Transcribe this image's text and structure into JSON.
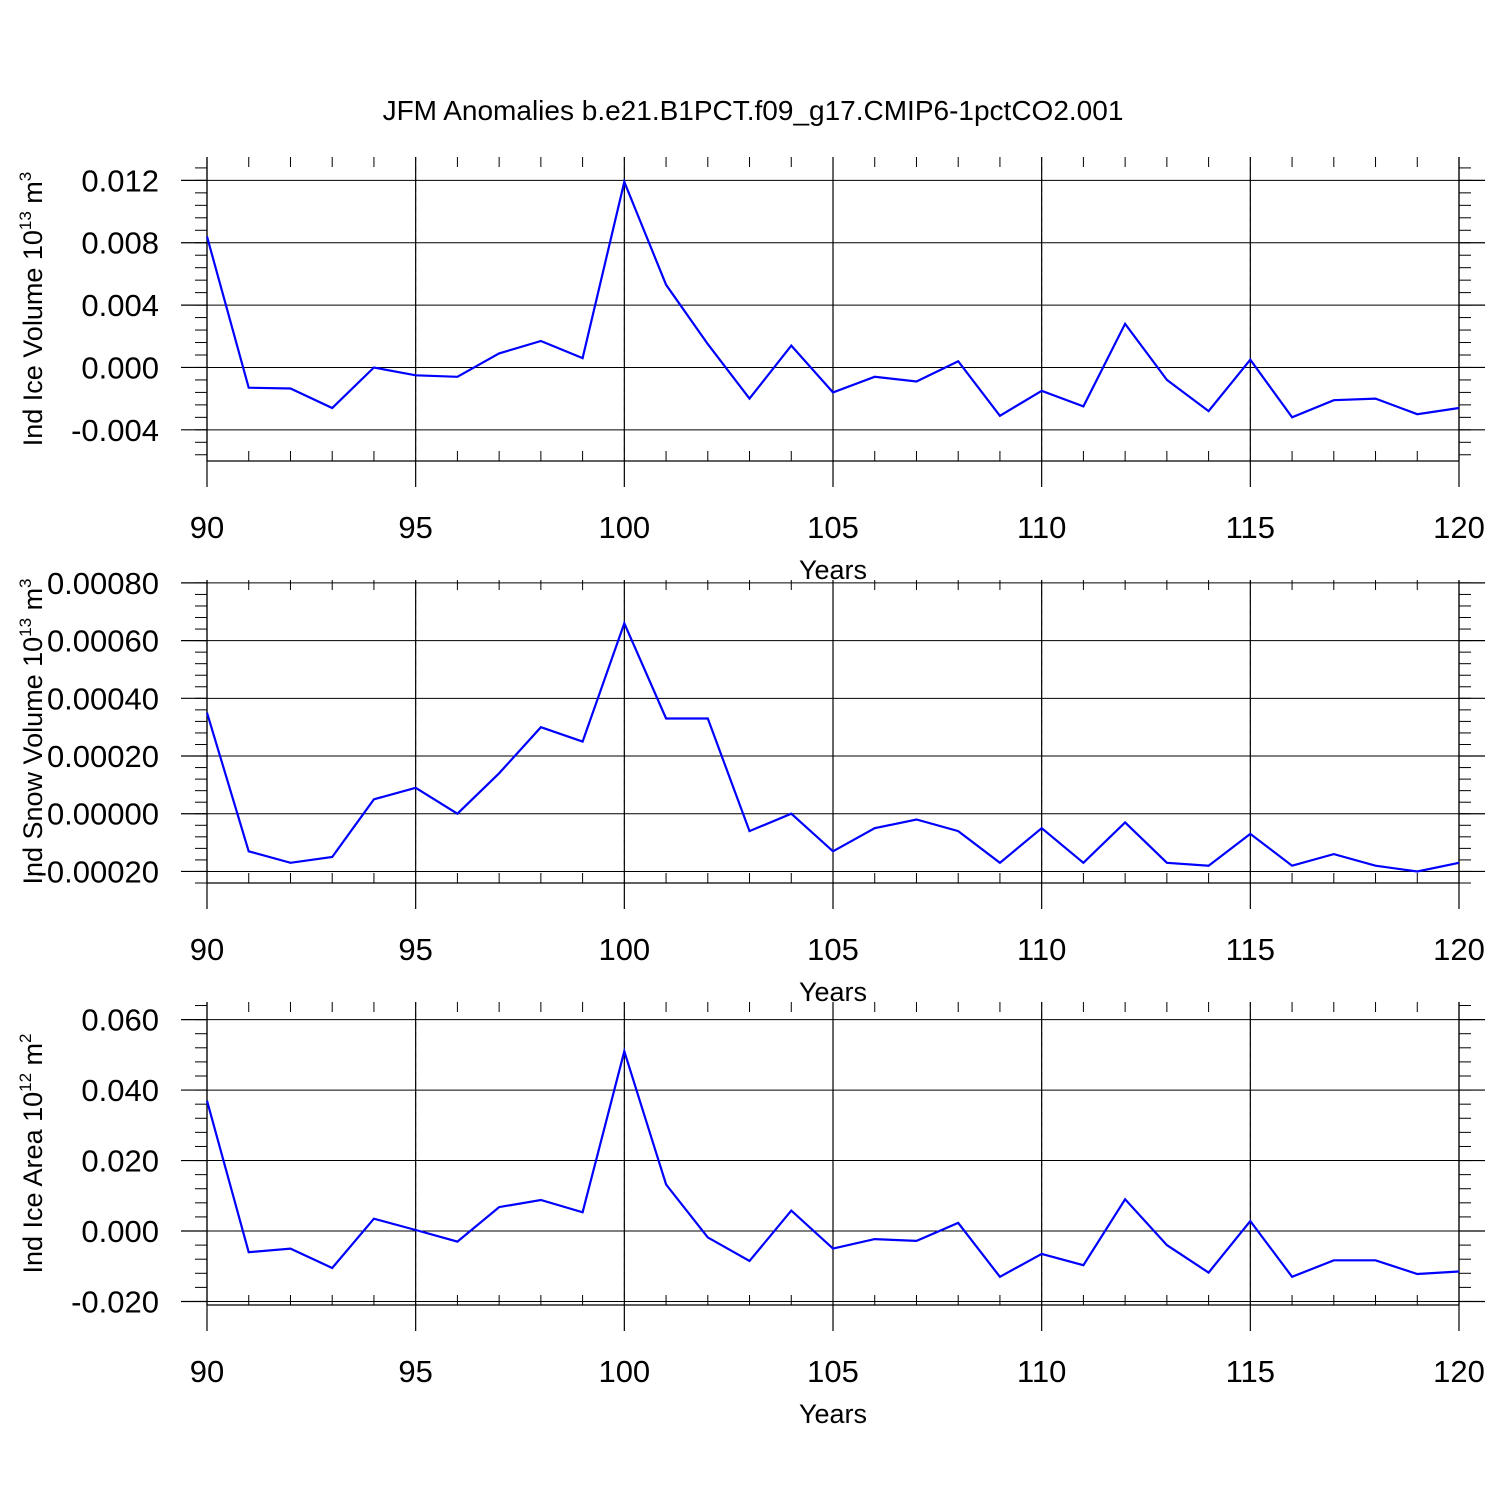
{
  "figure": {
    "title": "JFM Anomalies b.e21.B1PCT.f09_g17.CMIP6-1pctCO2.001",
    "line_color": "#0000ff"
  },
  "chart_data": [
    {
      "type": "line",
      "xlabel": "Years",
      "ylabel": {
        "text": "Ind Ice Volume 10",
        "sup": "13",
        "unit": " m",
        "unit_sup": "3"
      },
      "xlim": [
        90,
        120
      ],
      "ylim": [
        -0.006,
        0.0135
      ],
      "x_ticks": [
        90,
        95,
        100,
        105,
        110,
        115,
        120
      ],
      "x_tick_labels": [
        "90",
        "95",
        "100",
        "105",
        "110",
        "115",
        "120"
      ],
      "y_ticks": [
        -0.004,
        0.0,
        0.004,
        0.008,
        0.012
      ],
      "y_tick_labels": [
        "-0.004",
        "0.000",
        "0.004",
        "0.008",
        "0.012"
      ],
      "grid": "vertical dashed at major x ticks",
      "series": [
        {
          "x": [
            90,
            91,
            92,
            93,
            94,
            95,
            96,
            97,
            98,
            99,
            100,
            101,
            102,
            103,
            104,
            105,
            106,
            107,
            108,
            109,
            110,
            111,
            112,
            113,
            114,
            115,
            116,
            117,
            118,
            119,
            120
          ],
          "values": [
            0.0084,
            -0.0013,
            -0.00135,
            -0.0026,
            0.0,
            -0.0005,
            -0.0006,
            0.0009,
            0.0017,
            0.0006,
            0.0119,
            0.0053,
            0.0015,
            -0.002,
            0.0014,
            -0.0016,
            -0.0006,
            -0.0009,
            0.0004,
            -0.0031,
            -0.0015,
            -0.0025,
            0.0028,
            -0.0008,
            -0.0028,
            0.0005,
            -0.0032,
            -0.0021,
            -0.002,
            -0.003,
            -0.0026
          ]
        }
      ]
    },
    {
      "type": "line",
      "xlabel": "Years",
      "ylabel": {
        "text": "Ind Snow Volume 10",
        "sup": "13",
        "unit": " m",
        "unit_sup": "3"
      },
      "xlim": [
        90,
        120
      ],
      "ylim": [
        -0.00024,
        0.00081
      ],
      "x_ticks": [
        90,
        95,
        100,
        105,
        110,
        115,
        120
      ],
      "x_tick_labels": [
        "90",
        "95",
        "100",
        "105",
        "110",
        "115",
        "120"
      ],
      "y_ticks": [
        -0.0002,
        0.0,
        0.0002,
        0.0004,
        0.0006,
        0.0008
      ],
      "y_tick_labels": [
        "-0.00020",
        "0.00000",
        "0.00020",
        "0.00040",
        "0.00060",
        "0.00080"
      ],
      "grid": "vertical dashed at major x ticks",
      "series": [
        {
          "x": [
            90,
            91,
            92,
            93,
            94,
            95,
            96,
            97,
            98,
            99,
            100,
            101,
            102,
            103,
            104,
            105,
            106,
            107,
            108,
            109,
            110,
            111,
            112,
            113,
            114,
            115,
            116,
            117,
            118,
            119,
            120
          ],
          "values": [
            0.00035,
            -0.00013,
            -0.00017,
            -0.00015,
            5e-05,
            9e-05,
            0.0,
            0.00014,
            0.0003,
            0.00025,
            0.00066,
            0.00033,
            0.00033,
            -6e-05,
            0.0,
            -0.00013,
            -5e-05,
            -2e-05,
            -6e-05,
            -0.00017,
            -5e-05,
            -0.00017,
            -3e-05,
            -0.00017,
            -0.00018,
            -7e-05,
            -0.00018,
            -0.00014,
            -0.00018,
            -0.0002,
            -0.00017
          ]
        }
      ]
    },
    {
      "type": "line",
      "xlabel": "Years",
      "ylabel": {
        "text": "Ind Ice Area 10",
        "sup": "12",
        "unit": " m",
        "unit_sup": "2"
      },
      "xlim": [
        90,
        120
      ],
      "ylim": [
        -0.021,
        0.065
      ],
      "x_ticks": [
        90,
        95,
        100,
        105,
        110,
        115,
        120
      ],
      "x_tick_labels": [
        "90",
        "95",
        "100",
        "105",
        "110",
        "115",
        "120"
      ],
      "y_ticks": [
        -0.02,
        0.0,
        0.02,
        0.04,
        0.06
      ],
      "y_tick_labels": [
        "-0.020",
        "0.000",
        "0.020",
        "0.040",
        "0.060"
      ],
      "grid": "vertical dashed at major x ticks",
      "series": [
        {
          "x": [
            90,
            91,
            92,
            93,
            94,
            95,
            96,
            97,
            98,
            99,
            100,
            101,
            102,
            103,
            104,
            105,
            106,
            107,
            108,
            109,
            110,
            111,
            112,
            113,
            114,
            115,
            116,
            117,
            118,
            119,
            120
          ],
          "values": [
            0.037,
            -0.006,
            -0.005,
            -0.0105,
            0.0035,
            0.0003,
            -0.003,
            0.0068,
            0.0088,
            0.0053,
            0.051,
            0.0132,
            -0.0018,
            -0.0085,
            0.0058,
            -0.005,
            -0.0023,
            -0.0028,
            0.0023,
            -0.013,
            -0.0065,
            -0.0097,
            0.009,
            -0.004,
            -0.0118,
            0.0028,
            -0.013,
            -0.0083,
            -0.0083,
            -0.0122,
            -0.0115
          ]
        }
      ]
    }
  ]
}
